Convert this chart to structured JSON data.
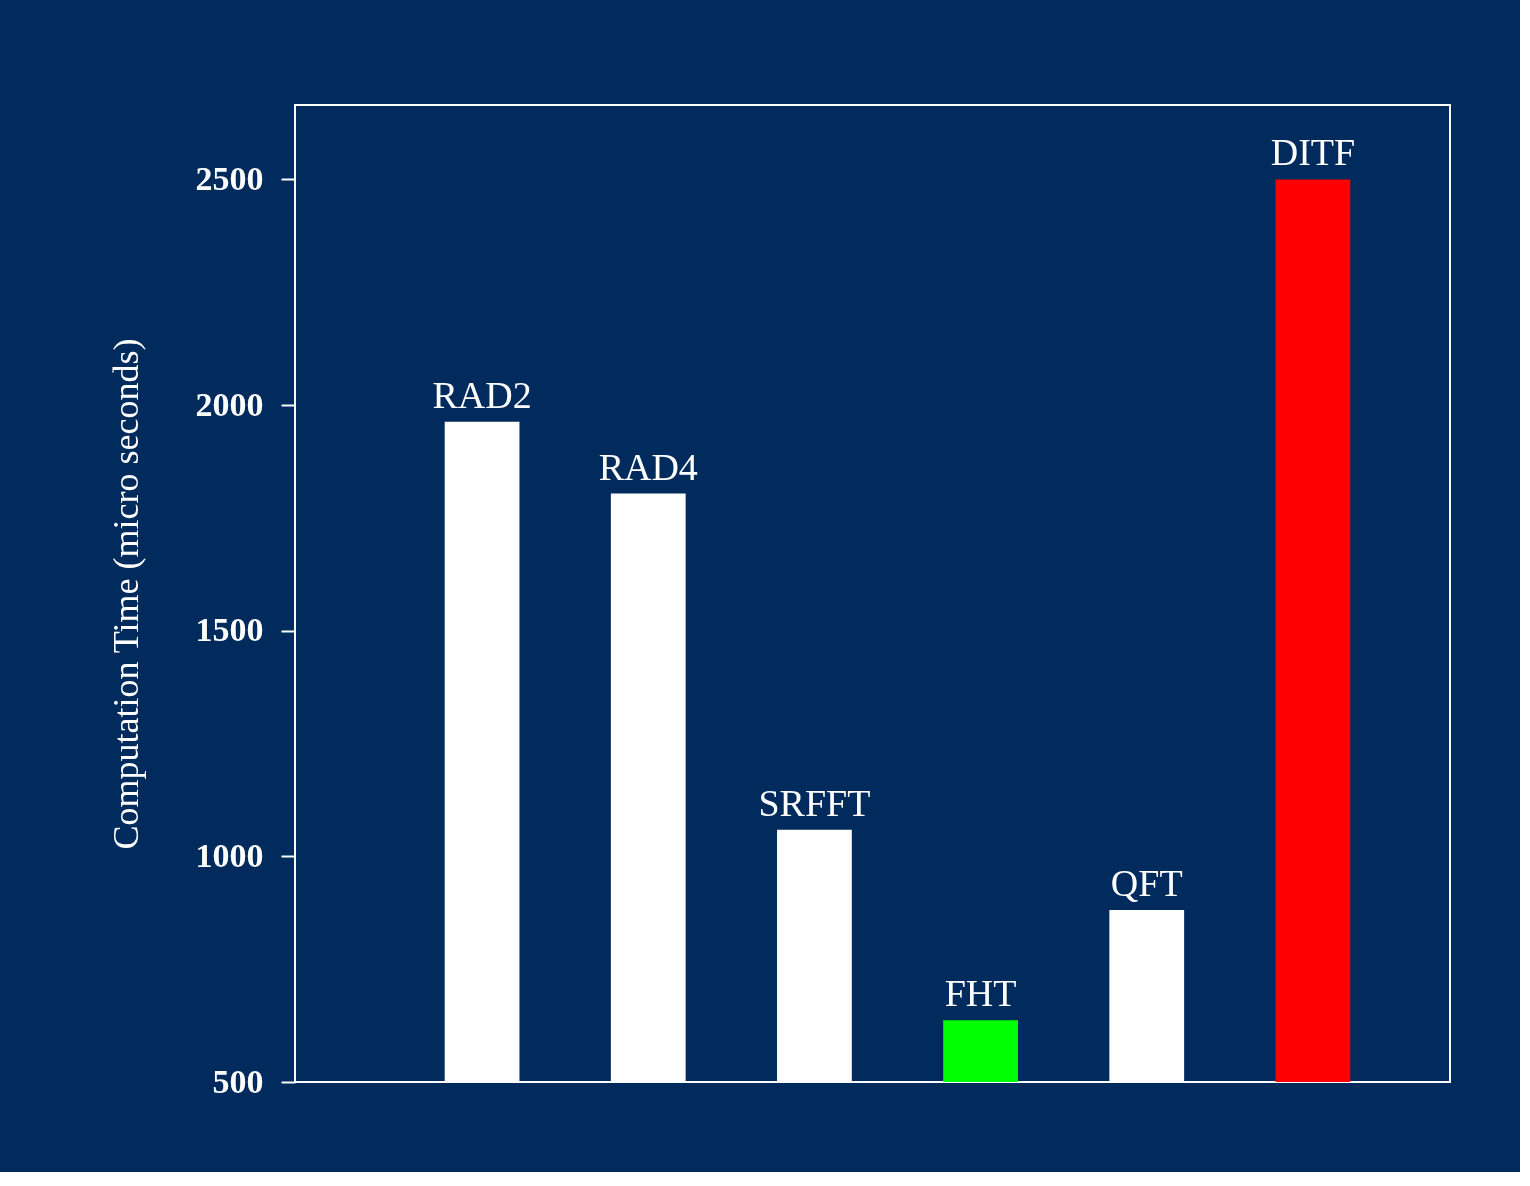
{
  "chart_data": {
    "type": "bar",
    "ylabel": "Computation Time (micro seconds)",
    "categories": [
      "RAD2",
      "RAD4",
      "SRFFT",
      "FHT",
      "QFT",
      "DITF"
    ],
    "values": [
      1963,
      1804,
      1059,
      637,
      881,
      2500
    ],
    "colors": [
      "#ffffff",
      "#ffffff",
      "#ffffff",
      "#00ff00",
      "#ffffff",
      "#ff0000"
    ],
    "ylim": [
      500,
      2665
    ],
    "yticks": [
      500,
      1000,
      1500,
      2000,
      2500
    ],
    "grid": false,
    "tick_labels": "y"
  }
}
